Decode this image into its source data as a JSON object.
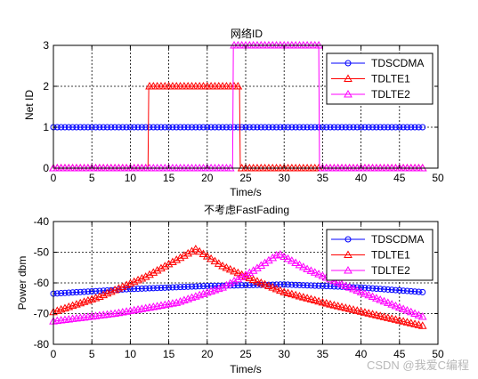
{
  "watermark": "CSDN @我爱C编程",
  "chart_data": [
    {
      "type": "line",
      "title": "网络ID",
      "xlabel": "Time/s",
      "ylabel": "Net ID",
      "xlim": [
        0,
        50
      ],
      "ylim": [
        0,
        3
      ],
      "xticks": [
        0,
        5,
        10,
        15,
        20,
        25,
        30,
        35,
        40,
        45,
        50
      ],
      "yticks": [
        0,
        1,
        2,
        3
      ],
      "grid": true,
      "legend_position": "top-right",
      "series": [
        {
          "name": "TDSCDMA",
          "color": "#0000ff",
          "marker": "circle",
          "x_range": [
            0,
            48
          ],
          "points": [
            [
              0,
              1
            ],
            [
              48,
              1
            ]
          ]
        },
        {
          "name": "TDLTE1",
          "color": "#ff0000",
          "marker": "triangle-up",
          "x_range": [
            0,
            48
          ],
          "points": [
            [
              0,
              0
            ],
            [
              12.3,
              0
            ],
            [
              12.4,
              2
            ],
            [
              24.2,
              2
            ],
            [
              24.3,
              0
            ],
            [
              48,
              0
            ]
          ]
        },
        {
          "name": "TDLTE2",
          "color": "#ff00ff",
          "marker": "triangle-up",
          "x_range": [
            0,
            48
          ],
          "points": [
            [
              0,
              0
            ],
            [
              23.3,
              0
            ],
            [
              23.4,
              3
            ],
            [
              34.5,
              3
            ],
            [
              34.6,
              0
            ],
            [
              48,
              0
            ]
          ]
        }
      ]
    },
    {
      "type": "line",
      "title": "不考虑FastFading",
      "xlabel": "Time/s",
      "ylabel": "Power dbm",
      "xlim": [
        0,
        50
      ],
      "ylim": [
        -80,
        -40
      ],
      "xticks": [
        0,
        5,
        10,
        15,
        20,
        25,
        30,
        35,
        40,
        45,
        50
      ],
      "yticks": [
        -80,
        -70,
        -60,
        -50,
        -40
      ],
      "grid": true,
      "legend_position": "top-right",
      "series": [
        {
          "name": "TDSCDMA",
          "color": "#0000ff",
          "marker": "circle",
          "x_range": [
            0,
            48
          ],
          "points": [
            [
              0,
              -63.5
            ],
            [
              10,
              -62
            ],
            [
              20,
              -61
            ],
            [
              30,
              -60.5
            ],
            [
              40,
              -61.5
            ],
            [
              48,
              -63
            ]
          ]
        },
        {
          "name": "TDLTE1",
          "color": "#ff0000",
          "marker": "triangle-up",
          "x_range": [
            0,
            48
          ],
          "points": [
            [
              0,
              -69.5
            ],
            [
              6,
              -64.5
            ],
            [
              12,
              -58
            ],
            [
              16,
              -52.5
            ],
            [
              18.5,
              -49
            ],
            [
              22,
              -54.5
            ],
            [
              26,
              -59
            ],
            [
              30,
              -63
            ],
            [
              36,
              -67
            ],
            [
              42,
              -70.5
            ],
            [
              48,
              -74
            ]
          ]
        },
        {
          "name": "TDLTE2",
          "color": "#ff00ff",
          "marker": "triangle-up",
          "x_range": [
            0,
            48
          ],
          "points": [
            [
              0,
              -72.5
            ],
            [
              8,
              -70
            ],
            [
              16,
              -66.5
            ],
            [
              22,
              -61.5
            ],
            [
              26,
              -56
            ],
            [
              29.3,
              -50.5
            ],
            [
              33,
              -55.5
            ],
            [
              38,
              -61
            ],
            [
              43,
              -66
            ],
            [
              48,
              -71
            ]
          ]
        }
      ]
    }
  ]
}
